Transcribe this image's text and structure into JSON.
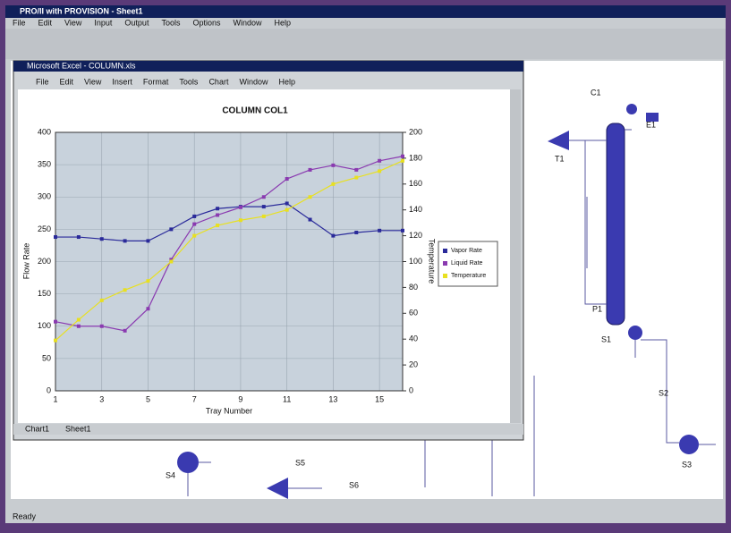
{
  "app": {
    "title": "PRO/II with PROVISION - Sheet1",
    "menu": [
      "File",
      "Edit",
      "View",
      "Input",
      "Output",
      "Tools",
      "Options",
      "Window",
      "Help"
    ],
    "status": "Ready"
  },
  "excel": {
    "title": "Microsoft Excel - COLUMN.xls",
    "menu": [
      "File",
      "Edit",
      "View",
      "Insert",
      "Format",
      "Tools",
      "Chart",
      "Window",
      "Help"
    ],
    "tabs": [
      "Chart1",
      "Sheet1"
    ]
  },
  "flowsheet": {
    "labels": [
      "T1",
      "C1",
      "E1",
      "P1",
      "S1",
      "S2",
      "S3",
      "S4",
      "S5",
      "S6"
    ]
  },
  "chart_data": {
    "type": "line",
    "title": "COLUMN COL1",
    "x_label": "Tray Number",
    "y_label": "Flow Rate",
    "y2_label": "Temperature",
    "x": [
      1,
      2,
      3,
      4,
      5,
      6,
      7,
      8,
      9,
      10,
      11,
      12,
      13,
      14,
      15,
      16
    ],
    "xlim": [
      1,
      16
    ],
    "xticks": [
      1,
      3,
      5,
      7,
      9,
      11,
      13,
      15
    ],
    "ylim": [
      0,
      400
    ],
    "yticks": [
      0,
      50,
      100,
      150,
      200,
      250,
      300,
      350,
      400
    ],
    "y2lim": [
      0,
      200
    ],
    "y2ticks": [
      0,
      20,
      40,
      60,
      80,
      100,
      120,
      140,
      160,
      180,
      200
    ],
    "grid": true,
    "legend": "right",
    "series": [
      {
        "name": "Vapor Rate",
        "color": "#2a2a9a",
        "values": [
          238,
          238,
          235,
          232,
          232,
          250,
          270,
          282,
          285,
          285,
          290,
          265,
          240,
          245,
          248,
          248
        ]
      },
      {
        "name": "Liquid Rate",
        "color": "#8a3ab0",
        "values": [
          107,
          100,
          100,
          93,
          127,
          203,
          258,
          272,
          284,
          300,
          328,
          342,
          349,
          342,
          356,
          363
        ]
      },
      {
        "name": "Temperature",
        "color": "#e8e020",
        "axis": "y2",
        "values": [
          39,
          55,
          70,
          78,
          85,
          100,
          120,
          128,
          132,
          135,
          140,
          150,
          160,
          165,
          170,
          178
        ]
      }
    ]
  }
}
